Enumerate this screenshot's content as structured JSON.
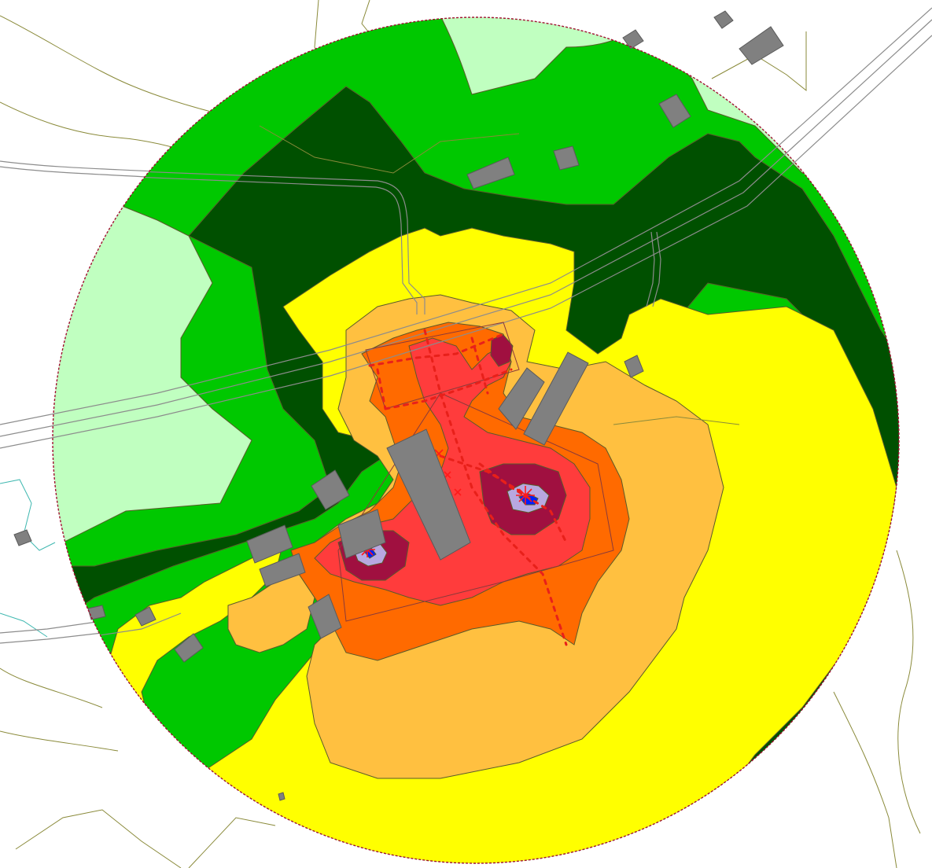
{
  "map": {
    "type": "noise-contour-map",
    "colors": {
      "level_1_light_green": "#c0ffc0",
      "level_2_green": "#00c800",
      "level_3_dark_green": "#005000",
      "level_4_yellow": "#ffff00",
      "level_5_light_orange": "#ffc040",
      "level_6_orange": "#ff6a00",
      "level_7_red": "#ff3c3c",
      "level_8_dark_red": "#a01040",
      "level_9_lavender": "#b8a8e0",
      "level_10_blue": "#0020ff",
      "building": "#808080",
      "road": "#8c8c8c",
      "topo_line": "#8a8a3a",
      "boundary": "#a01030",
      "noise_source": "#e8201a"
    },
    "legend": []
  }
}
